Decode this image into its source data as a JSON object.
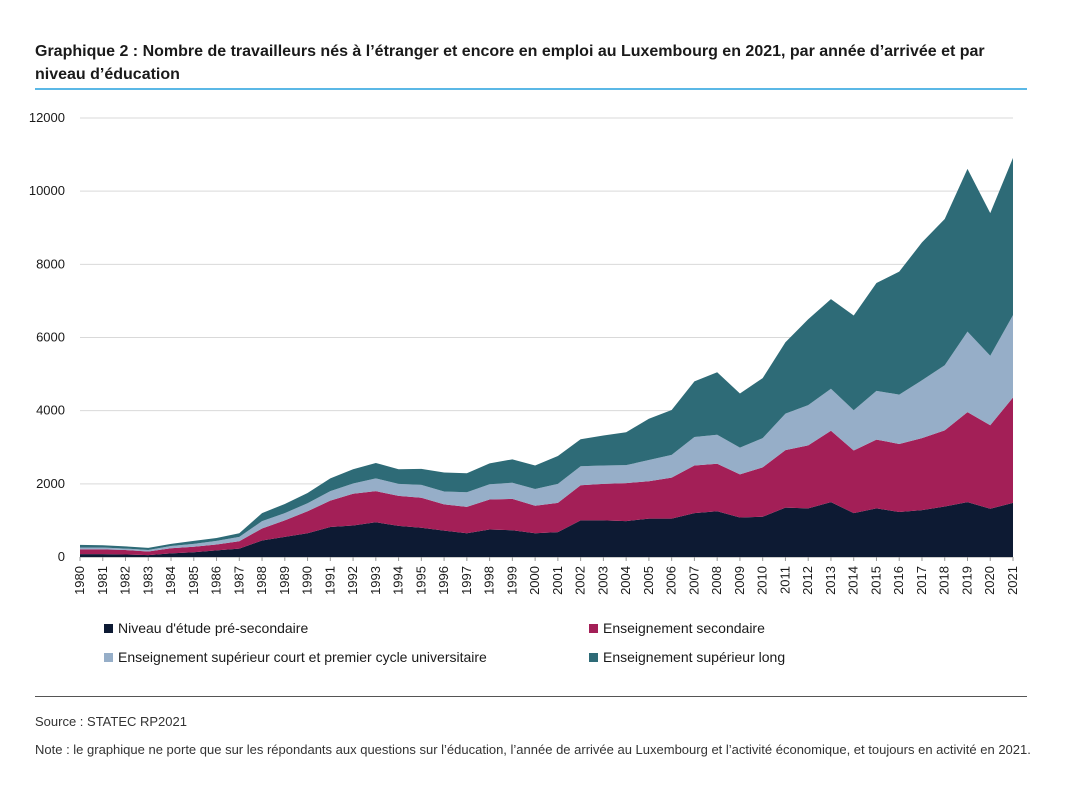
{
  "title": "Graphique 2 : Nombre de travailleurs nés à l’étranger et encore en emploi au Luxembourg en 2021, par année d’arrivée et par niveau d’éducation",
  "source": "Source : STATEC RP2021",
  "note": "Note : le graphique ne porte que sur les répondants aux questions sur l’éducation, l’année de arrivée au Luxembourg et l’activité économique, et toujours en activité en 2021.",
  "chart_data": {
    "type": "area",
    "stacked": true,
    "x": [
      "1980",
      "1981",
      "1982",
      "1983",
      "1984",
      "1985",
      "1986",
      "1987",
      "1988",
      "1989",
      "1990",
      "1991",
      "1992",
      "1993",
      "1994",
      "1995",
      "1996",
      "1997",
      "1998",
      "1999",
      "2000",
      "2001",
      "2002",
      "2003",
      "2004",
      "2005",
      "2006",
      "2007",
      "2008",
      "2009",
      "2010",
      "2011",
      "2012",
      "2013",
      "2014",
      "2015",
      "2016",
      "2017",
      "2018",
      "2019",
      "2020",
      "2021"
    ],
    "ylim": [
      0,
      12000
    ],
    "yticks": [
      0,
      2000,
      4000,
      6000,
      8000,
      10000,
      12000
    ],
    "ytick_labels": [
      "0",
      "2000",
      "4000",
      "6000",
      "8000",
      "10000",
      "12000"
    ],
    "grid": true,
    "legend_position": "bottom",
    "series": [
      {
        "name": "Niveau d'étude pré-secondaire",
        "color": "#0d1a33",
        "values": [
          80,
          80,
          70,
          50,
          100,
          130,
          180,
          230,
          450,
          550,
          650,
          820,
          860,
          950,
          850,
          800,
          720,
          650,
          750,
          730,
          650,
          680,
          1000,
          1000,
          980,
          1050,
          1050,
          1200,
          1250,
          1080,
          1100,
          1350,
          1330,
          1500,
          1200,
          1330,
          1230,
          1280,
          1380,
          1500,
          1320,
          1480
        ]
      },
      {
        "name": "Enseignement secondaire",
        "color": "#a31f57",
        "values": [
          130,
          130,
          120,
          100,
          140,
          150,
          160,
          200,
          330,
          450,
          600,
          720,
          870,
          850,
          820,
          820,
          720,
          720,
          820,
          860,
          750,
          800,
          960,
          1000,
          1040,
          1020,
          1120,
          1300,
          1300,
          1180,
          1350,
          1570,
          1720,
          1950,
          1710,
          1880,
          1860,
          1970,
          2080,
          2460,
          2280,
          2880
        ]
      },
      {
        "name": "Enseignement supérieur court et premier cycle universitaire",
        "color": "#96aec8",
        "values": [
          50,
          50,
          40,
          40,
          60,
          80,
          100,
          120,
          200,
          200,
          220,
          260,
          280,
          350,
          330,
          350,
          350,
          400,
          420,
          440,
          460,
          520,
          520,
          500,
          490,
          580,
          620,
          780,
          790,
          730,
          800,
          1000,
          1100,
          1150,
          1100,
          1330,
          1350,
          1580,
          1780,
          2200,
          1900,
          2250
        ]
      },
      {
        "name": "Enseignement supérieur long",
        "color": "#2e6b77",
        "values": [
          70,
          60,
          60,
          60,
          60,
          80,
          80,
          100,
          220,
          250,
          280,
          350,
          390,
          420,
          400,
          440,
          520,
          520,
          570,
          640,
          640,
          760,
          740,
          820,
          900,
          1130,
          1230,
          1520,
          1710,
          1480,
          1640,
          1950,
          2350,
          2450,
          2590,
          2950,
          3360,
          3770,
          4000,
          4450,
          3900,
          4300
        ]
      }
    ]
  }
}
